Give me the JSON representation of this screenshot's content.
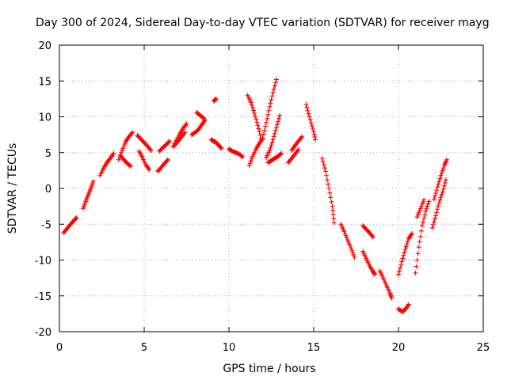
{
  "chart_data": {
    "type": "scatter",
    "title": "Day 300 of 2024, Sidereal Day-to-day VTEC variation (SDTVAR) for receiver mayg",
    "xlabel": "GPS time / hours",
    "ylabel": "SDTVAR / TECUs",
    "xlim": [
      0,
      25
    ],
    "ylim": [
      -20,
      20
    ],
    "xticks": [
      0,
      5,
      10,
      15,
      20,
      25
    ],
    "yticks": [
      -20,
      -15,
      -10,
      -5,
      0,
      5,
      10,
      15,
      20
    ],
    "grid": true,
    "marker": "+",
    "color": "#ff0000",
    "series": [
      {
        "name": "seg01",
        "x": [
          0.25,
          0.45,
          0.65,
          0.85,
          1.0
        ],
        "y": [
          -6.2,
          -5.6,
          -5.0,
          -4.5,
          -4.1
        ]
      },
      {
        "name": "seg02",
        "x": [
          1.4,
          1.55,
          1.7,
          1.85,
          2.0
        ],
        "y": [
          -2.8,
          -1.8,
          -0.9,
          0.0,
          1.0
        ]
      },
      {
        "name": "seg03",
        "x": [
          2.4,
          2.6,
          2.8,
          3.0,
          3.2
        ],
        "y": [
          1.8,
          2.8,
          3.6,
          4.2,
          4.9
        ]
      },
      {
        "name": "seg04",
        "x": [
          3.5,
          3.7,
          3.9,
          4.1,
          4.3
        ],
        "y": [
          4.0,
          5.3,
          6.5,
          7.2,
          7.8
        ]
      },
      {
        "name": "seg05",
        "x": [
          3.6,
          3.8,
          4.0,
          4.2
        ],
        "y": [
          4.6,
          4.0,
          3.5,
          3.1
        ]
      },
      {
        "name": "seg06",
        "x": [
          4.6,
          4.8,
          5.0,
          5.2,
          5.4
        ],
        "y": [
          7.4,
          6.9,
          6.4,
          5.9,
          5.3
        ]
      },
      {
        "name": "seg07",
        "x": [
          4.7,
          4.9,
          5.1,
          5.3
        ],
        "y": [
          5.2,
          4.3,
          3.3,
          2.6
        ]
      },
      {
        "name": "seg08",
        "x": [
          5.8,
          6.0,
          6.2,
          6.4
        ],
        "y": [
          2.4,
          2.9,
          3.5,
          4.0
        ]
      },
      {
        "name": "seg09",
        "x": [
          5.9,
          6.1,
          6.3,
          6.5
        ],
        "y": [
          5.2,
          5.7,
          6.1,
          6.6
        ]
      },
      {
        "name": "seg10",
        "x": [
          6.7,
          6.9,
          7.1,
          7.3,
          7.5
        ],
        "y": [
          5.8,
          6.7,
          7.6,
          8.4,
          9.0
        ]
      },
      {
        "name": "seg11",
        "x": [
          6.8,
          7.0,
          7.2,
          7.4
        ],
        "y": [
          6.0,
          6.6,
          7.2,
          7.8
        ]
      },
      {
        "name": "seg12",
        "x": [
          7.8,
          8.0,
          8.2,
          8.4,
          8.6
        ],
        "y": [
          7.5,
          7.8,
          8.2,
          8.9,
          9.6
        ]
      },
      {
        "name": "seg13",
        "x": [
          8.1,
          8.3,
          8.5
        ],
        "y": [
          10.6,
          10.2,
          9.8
        ]
      },
      {
        "name": "seg14",
        "x": [
          8.95,
          9.1,
          9.25,
          9.4,
          9.55
        ],
        "y": [
          6.8,
          6.6,
          6.4,
          6.0,
          5.6
        ]
      },
      {
        "name": "seg15",
        "x": [
          9.1,
          9.25
        ],
        "y": [
          12.2,
          12.5
        ]
      },
      {
        "name": "seg16",
        "x": [
          10.0,
          10.2,
          10.4,
          10.6,
          10.8
        ],
        "y": [
          5.5,
          5.2,
          5.0,
          4.8,
          4.4
        ]
      },
      {
        "name": "seg17",
        "x": [
          11.1,
          11.3,
          11.5,
          11.7,
          11.9
        ],
        "y": [
          13.0,
          12.0,
          10.5,
          8.8,
          7.0
        ]
      },
      {
        "name": "seg18",
        "x": [
          11.2,
          11.4,
          11.6,
          11.8,
          12.0
        ],
        "y": [
          3.2,
          4.5,
          5.5,
          6.3,
          7.0
        ]
      },
      {
        "name": "seg19",
        "x": [
          12.0,
          12.2,
          12.4,
          12.6,
          12.8
        ],
        "y": [
          7.0,
          9.2,
          11.4,
          13.4,
          15.2
        ]
      },
      {
        "name": "seg20",
        "x": [
          12.2,
          12.4,
          12.6,
          12.8,
          13.0
        ],
        "y": [
          4.3,
          5.3,
          6.8,
          8.5,
          10.2
        ]
      },
      {
        "name": "seg21",
        "x": [
          12.3,
          12.5,
          12.7,
          12.9,
          13.1
        ],
        "y": [
          3.6,
          3.9,
          4.2,
          4.5,
          4.9
        ]
      },
      {
        "name": "seg22",
        "x": [
          13.5,
          13.7,
          13.9,
          14.1
        ],
        "y": [
          3.6,
          4.2,
          4.8,
          5.4
        ]
      },
      {
        "name": "seg23",
        "x": [
          13.7,
          13.9,
          14.1,
          14.3
        ],
        "y": [
          5.3,
          6.0,
          6.6,
          7.2
        ]
      },
      {
        "name": "seg24",
        "x": [
          14.55,
          14.75,
          14.95,
          15.1
        ],
        "y": [
          11.7,
          10.0,
          8.3,
          6.8
        ]
      },
      {
        "name": "seg25",
        "x": [
          15.5,
          15.7,
          15.9,
          16.1,
          16.2
        ],
        "y": [
          4.2,
          2.4,
          0.0,
          -2.5,
          -4.8
        ]
      },
      {
        "name": "seg26",
        "x": [
          16.6,
          16.8,
          17.0,
          17.2,
          17.4
        ],
        "y": [
          -5.0,
          -6.0,
          -7.2,
          -8.3,
          -9.6
        ]
      },
      {
        "name": "seg27",
        "x": [
          17.9,
          18.1,
          18.3,
          18.5,
          18.6
        ],
        "y": [
          -8.8,
          -9.8,
          -10.8,
          -11.6,
          -12.0
        ]
      },
      {
        "name": "seg28",
        "x": [
          17.9,
          18.1,
          18.3,
          18.5
        ],
        "y": [
          -5.2,
          -5.7,
          -6.2,
          -6.8
        ]
      },
      {
        "name": "seg29",
        "x": [
          18.9,
          19.1,
          19.3,
          19.5,
          19.6
        ],
        "y": [
          -11.5,
          -12.5,
          -13.6,
          -14.6,
          -15.3
        ]
      },
      {
        "name": "seg30",
        "x": [
          20.0,
          20.2,
          20.4,
          20.6
        ],
        "y": [
          -16.8,
          -17.2,
          -16.9,
          -16.2
        ]
      },
      {
        "name": "seg31",
        "x": [
          20.0,
          20.2,
          20.4,
          20.6,
          20.8
        ],
        "y": [
          -12.0,
          -10.2,
          -8.5,
          -7.0,
          -6.3
        ]
      },
      {
        "name": "seg32",
        "x": [
          21.0,
          21.2,
          21.4,
          21.6,
          21.8
        ],
        "y": [
          -11.8,
          -8.2,
          -5.2,
          -3.2,
          -1.8
        ]
      },
      {
        "name": "seg33",
        "x": [
          21.1,
          21.3,
          21.5
        ],
        "y": [
          -4.0,
          -2.8,
          -1.6
        ]
      },
      {
        "name": "seg34",
        "x": [
          22.1,
          22.3,
          22.5,
          22.7,
          22.85
        ],
        "y": [
          -1.5,
          0.2,
          1.8,
          3.2,
          4.0
        ]
      },
      {
        "name": "seg35",
        "x": [
          22.0,
          22.2,
          22.4,
          22.6,
          22.8
        ],
        "y": [
          -5.5,
          -3.8,
          -2.0,
          -0.5,
          1.2
        ]
      }
    ]
  }
}
